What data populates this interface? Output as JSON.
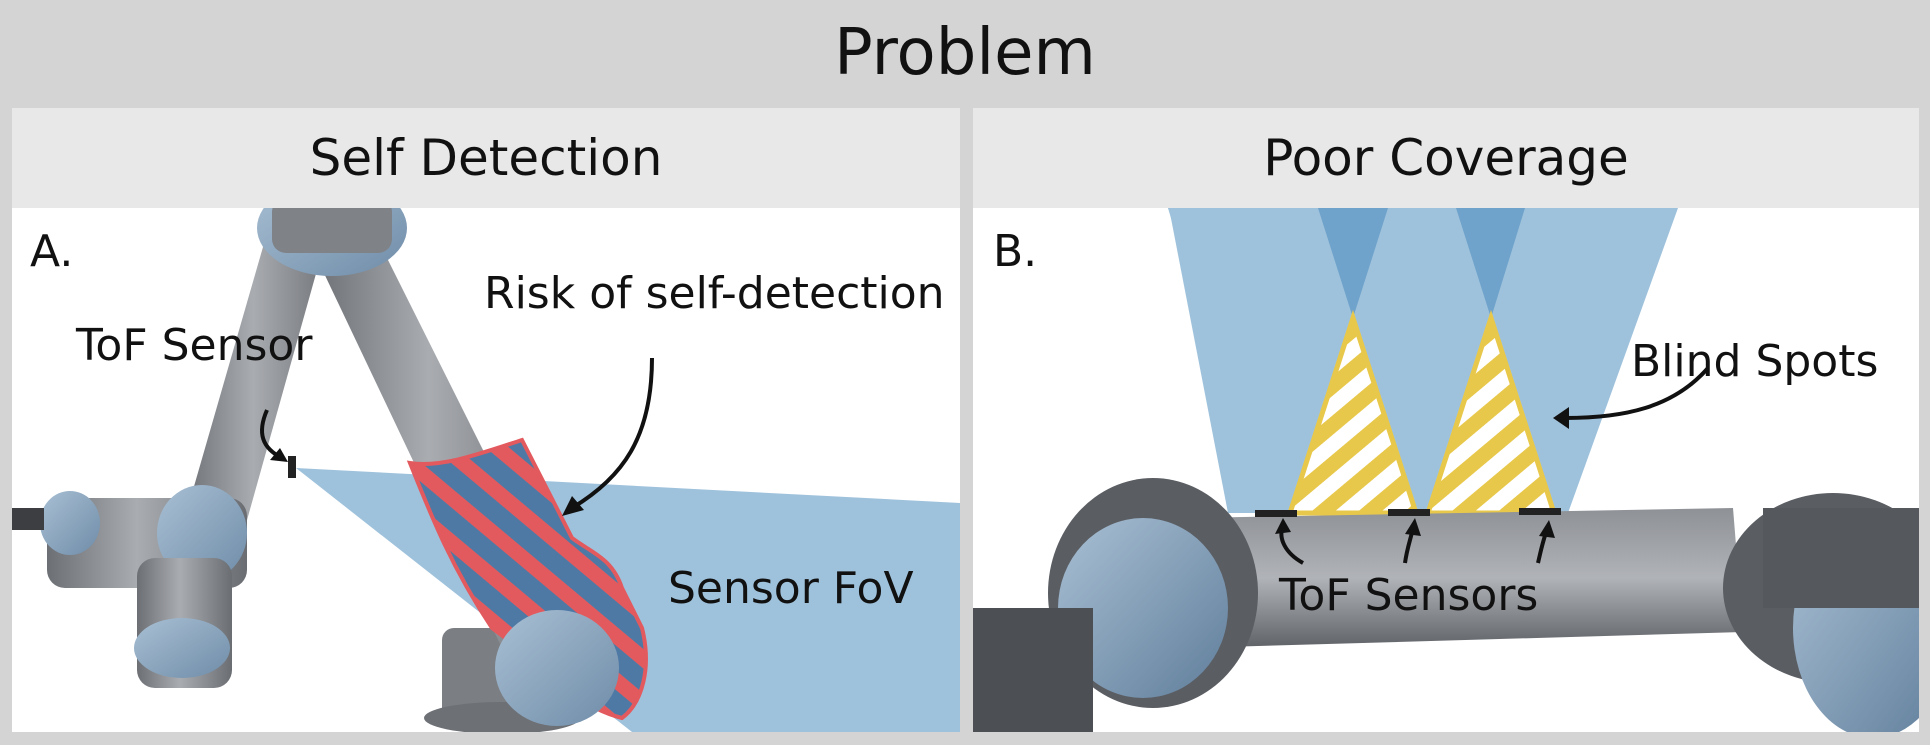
{
  "title": "Problem",
  "panels": [
    {
      "header": "Self Detection",
      "letter": "A.",
      "labels": {
        "tof_sensor": "ToF Sensor",
        "risk": "Risk of self-detection",
        "fov": "Sensor FoV"
      }
    },
    {
      "header": "Poor Coverage",
      "letter": "B.",
      "labels": {
        "blind_spots": "Blind Spots",
        "tof_sensors": "ToF Sensors"
      }
    }
  ],
  "colors": {
    "background": "#d4d4d4",
    "header": "#e8e8e8",
    "fov_blue": "#9fc2dc",
    "fov_overlap": "#6fa3cb",
    "robot_gray": "#8d9095",
    "robot_joint": "#8ba6bf",
    "hazard_red": "#e35a5e",
    "blind_yellow": "#e8c84a"
  }
}
